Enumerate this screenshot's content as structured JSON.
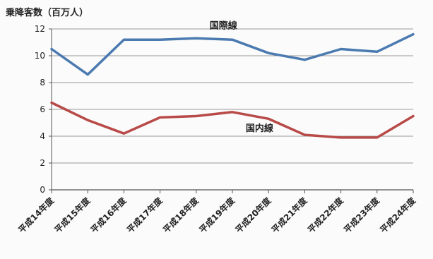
{
  "chart_data": {
    "type": "line",
    "title": "",
    "xlabel": "",
    "ylabel": "乗降客数（百万人）",
    "ylim": [
      0,
      12
    ],
    "yticks": [
      0,
      2,
      4,
      6,
      8,
      10,
      12
    ],
    "grid": true,
    "legend": "inline-labels",
    "categories": [
      "平成14年度",
      "平成15年度",
      "平成16年度",
      "平成17年度",
      "平成18年度",
      "平成19年度",
      "平成20年度",
      "平成21年度",
      "平成22年度",
      "平成23年度",
      "平成24年度"
    ],
    "series": [
      {
        "name": "国際線",
        "color": "#4a7ab0",
        "values": [
          10.5,
          8.6,
          11.2,
          11.2,
          11.3,
          11.2,
          10.2,
          9.7,
          10.5,
          10.3,
          11.6
        ]
      },
      {
        "name": "国内線",
        "color": "#b84a48",
        "values": [
          6.5,
          5.2,
          4.2,
          5.4,
          5.5,
          5.8,
          5.3,
          4.1,
          3.9,
          3.9,
          5.5
        ]
      }
    ]
  }
}
